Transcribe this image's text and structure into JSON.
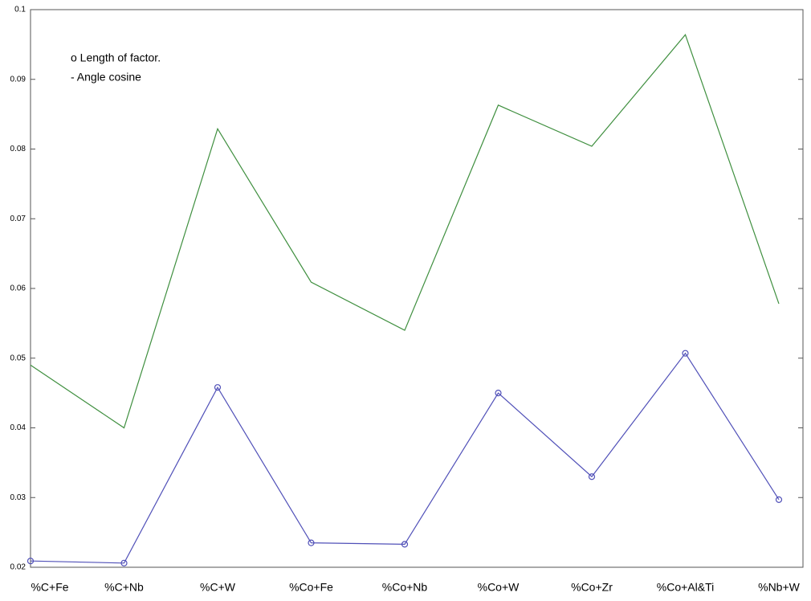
{
  "chart_data": {
    "type": "line",
    "annotations": [
      "o Length of factor.",
      "- Angle cosine"
    ],
    "categories": [
      "%C+Fe",
      "%C+Nb",
      "%C+W",
      "%Co+Fe",
      "%Co+Nb",
      "%Co+W",
      "%Co+Zr",
      "%Co+Al&Ti",
      "%Nb+W"
    ],
    "series": [
      {
        "color": "#3f8f3f",
        "marker": "none",
        "values": [
          0.049,
          0.04,
          0.0829,
          0.0609,
          0.054,
          0.0863,
          0.0804,
          0.0964,
          0.0578
        ]
      },
      {
        "color": "#5050b8",
        "marker": "circle",
        "values": [
          0.0209,
          0.0206,
          0.0458,
          0.0235,
          0.0233,
          0.045,
          0.033,
          0.0507,
          0.0297
        ]
      }
    ],
    "ylim": [
      0.02,
      0.1
    ],
    "yticks": [
      0.02,
      0.03,
      0.04,
      0.05,
      0.06,
      0.07,
      0.08,
      0.09,
      0.1
    ]
  }
}
